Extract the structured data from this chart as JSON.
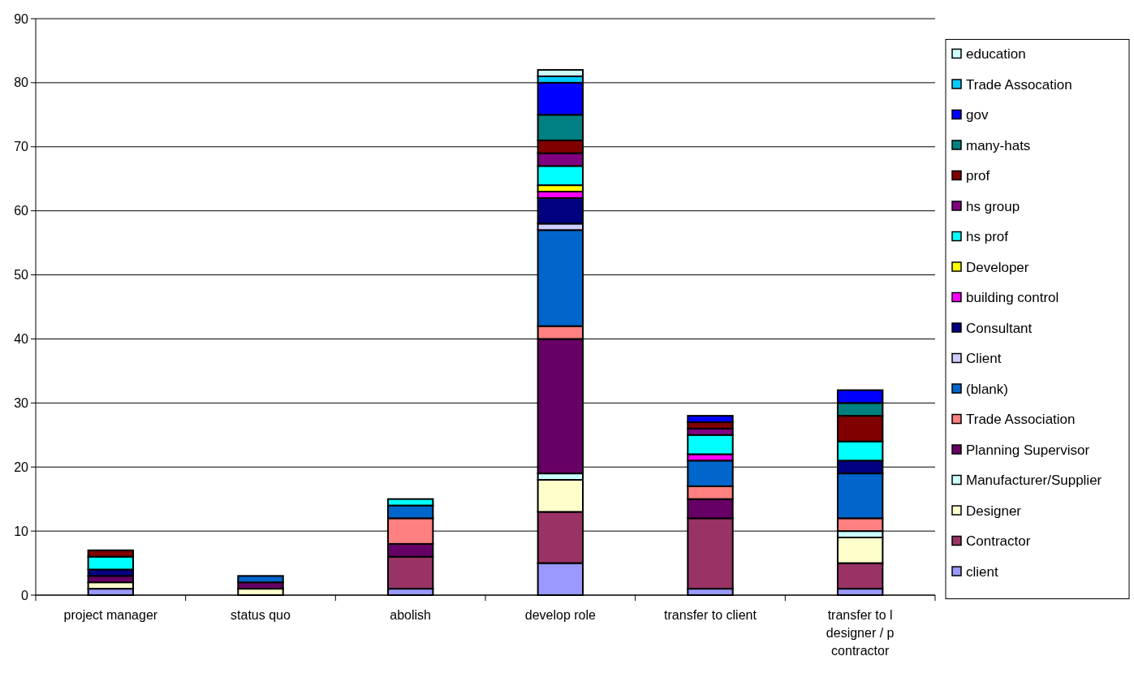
{
  "chart_data": {
    "type": "bar",
    "stacked": true,
    "categories": [
      "project manager",
      "status quo",
      "abolish",
      "develop role",
      "transfer to client",
      "transfer to l designer / p contractor"
    ],
    "series": [
      {
        "name": "client",
        "color": "#9999ff",
        "values": [
          1,
          null,
          1,
          5,
          1,
          1
        ]
      },
      {
        "name": "Contractor",
        "color": "#993366",
        "values": [
          null,
          null,
          5,
          8,
          11,
          4
        ]
      },
      {
        "name": "Designer",
        "color": "#ffffcc",
        "values": [
          1,
          1,
          null,
          5,
          null,
          4
        ]
      },
      {
        "name": "Manufacturer/Supplier",
        "color": "#ccffff",
        "values": [
          null,
          null,
          null,
          1,
          null,
          1
        ]
      },
      {
        "name": "Planning Supervisor",
        "color": "#660066",
        "values": [
          1,
          1,
          2,
          21,
          3,
          null
        ]
      },
      {
        "name": "Trade Association",
        "color": "#ff8080",
        "values": [
          null,
          null,
          4,
          2,
          2,
          2
        ]
      },
      {
        "name": "(blank)",
        "color": "#0066cc",
        "values": [
          null,
          1,
          2,
          15,
          4,
          7
        ]
      },
      {
        "name": " Client",
        "color": "#ccccff",
        "values": [
          null,
          null,
          null,
          1,
          null,
          null
        ]
      },
      {
        "name": "Consultant",
        "color": "#000080",
        "values": [
          1,
          null,
          null,
          4,
          null,
          2
        ]
      },
      {
        "name": "building control",
        "color": "#ff00ff",
        "values": [
          null,
          null,
          null,
          1,
          1,
          null
        ]
      },
      {
        "name": "Developer",
        "color": "#ffff00",
        "values": [
          null,
          null,
          null,
          1,
          null,
          null
        ]
      },
      {
        "name": "hs prof",
        "color": "#00ffff",
        "values": [
          2,
          null,
          1,
          3,
          3,
          3
        ]
      },
      {
        "name": "hs group",
        "color": "#800080",
        "values": [
          null,
          null,
          null,
          2,
          1,
          null
        ]
      },
      {
        "name": "prof",
        "color": "#800000",
        "values": [
          1,
          null,
          null,
          2,
          1,
          4
        ]
      },
      {
        "name": "many-hats",
        "color": "#008080",
        "values": [
          null,
          null,
          null,
          4,
          null,
          2
        ]
      },
      {
        "name": "gov",
        "color": "#0000ff",
        "values": [
          null,
          null,
          null,
          5,
          1,
          2
        ]
      },
      {
        "name": "Trade Assocation",
        "color": "#00ccff",
        "values": [
          null,
          null,
          null,
          1,
          null,
          null
        ]
      },
      {
        "name": "education",
        "color": "#ccffff",
        "values": [
          null,
          null,
          null,
          1,
          null,
          null
        ]
      }
    ],
    "ylim": [
      0,
      90
    ],
    "yticks": [
      0,
      10,
      20,
      30,
      40,
      50,
      60,
      70,
      80,
      90
    ],
    "grid": "y",
    "legend": "right"
  }
}
